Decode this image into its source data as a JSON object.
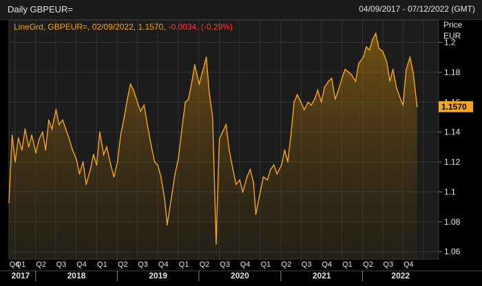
{
  "header": {
    "title": "Daily GBPEUR=",
    "date_range": "04/09/2017 - 07/12/2022 (GMT)"
  },
  "legend": {
    "series": "LineGrd, GBPEUR=, 02/09/2022, 1.1570,",
    "change": "-0.0034, (-0.29%)"
  },
  "axis": {
    "y_title_1": "Price",
    "y_title_2": "EUR",
    "last_value_label": "1.1570"
  },
  "colors": {
    "line": "#f5a623",
    "change_text": "#ff3b30",
    "last_value_box": "#f5a623",
    "background": "#000000",
    "plot_bg": "#1c1c1c"
  },
  "chart_data": {
    "type": "area",
    "title": "Daily GBPEUR=",
    "ylabel": "EUR",
    "ylim": [
      1.055,
      1.215
    ],
    "yticks": [
      1.06,
      1.08,
      1.1,
      1.12,
      1.14,
      1.16,
      1.18,
      1.2
    ],
    "ytick_labels": [
      "1.06",
      "1.08",
      "1.1",
      "1.12",
      "1.14",
      "1.16",
      "1.18",
      "1.2"
    ],
    "quarter_labels": [
      "Q4",
      "Q1",
      "Q2",
      "Q3",
      "Q4",
      "Q1",
      "Q2",
      "Q3",
      "Q4",
      "Q1",
      "Q2",
      "Q3",
      "Q4",
      "Q1",
      "Q2",
      "Q3",
      "Q4",
      "Q1",
      "Q2",
      "Q3",
      "Q4"
    ],
    "year_labels": [
      "2017",
      "2018",
      "2019",
      "2020",
      "2021",
      "2022"
    ],
    "grid": true,
    "x": [
      "2017-09-04",
      "2017-09-18",
      "2017-10-02",
      "2017-10-16",
      "2017-11-01",
      "2017-11-15",
      "2017-12-01",
      "2017-12-15",
      "2018-01-02",
      "2018-01-16",
      "2018-02-01",
      "2018-02-15",
      "2018-03-01",
      "2018-03-15",
      "2018-04-02",
      "2018-04-16",
      "2018-05-02",
      "2018-05-16",
      "2018-06-01",
      "2018-06-15",
      "2018-07-02",
      "2018-07-16",
      "2018-08-01",
      "2018-08-15",
      "2018-09-03",
      "2018-09-17",
      "2018-10-01",
      "2018-10-15",
      "2018-11-01",
      "2018-11-15",
      "2018-12-03",
      "2018-12-17",
      "2019-01-02",
      "2019-01-16",
      "2019-02-01",
      "2019-02-15",
      "2019-03-01",
      "2019-03-15",
      "2019-04-01",
      "2019-04-15",
      "2019-05-01",
      "2019-05-15",
      "2019-06-03",
      "2019-06-17",
      "2019-07-01",
      "2019-07-15",
      "2019-08-01",
      "2019-08-12",
      "2019-09-02",
      "2019-09-16",
      "2019-10-01",
      "2019-10-15",
      "2019-11-01",
      "2019-11-15",
      "2019-12-02",
      "2019-12-13",
      "2020-01-02",
      "2020-01-16",
      "2020-02-03",
      "2020-02-17",
      "2020-03-02",
      "2020-03-18",
      "2020-04-01",
      "2020-04-15",
      "2020-05-01",
      "2020-05-15",
      "2020-06-01",
      "2020-06-15",
      "2020-07-01",
      "2020-07-15",
      "2020-08-03",
      "2020-08-17",
      "2020-09-01",
      "2020-09-11",
      "2020-10-01",
      "2020-10-15",
      "2020-11-02",
      "2020-11-16",
      "2020-12-01",
      "2020-12-15",
      "2021-01-04",
      "2021-01-18",
      "2021-02-01",
      "2021-02-15",
      "2021-03-01",
      "2021-03-15",
      "2021-04-01",
      "2021-04-15",
      "2021-05-03",
      "2021-05-17",
      "2021-06-01",
      "2021-06-15",
      "2021-07-01",
      "2021-07-15",
      "2021-08-02",
      "2021-08-16",
      "2021-09-01",
      "2021-09-15",
      "2021-10-01",
      "2021-10-15",
      "2021-11-01",
      "2021-11-15",
      "2021-12-01",
      "2021-12-15",
      "2022-01-04",
      "2022-01-18",
      "2022-02-01",
      "2022-02-15",
      "2022-03-01",
      "2022-03-15",
      "2022-04-01",
      "2022-04-19",
      "2022-05-03",
      "2022-05-17",
      "2022-06-01",
      "2022-06-15",
      "2022-07-01",
      "2022-07-15",
      "2022-08-01",
      "2022-08-15",
      "2022-09-02"
    ],
    "series": [
      {
        "values": [
          1.093,
          1.138,
          1.12,
          1.136,
          1.128,
          1.142,
          1.13,
          1.138,
          1.126,
          1.135,
          1.14,
          1.128,
          1.148,
          1.142,
          1.155,
          1.145,
          1.148,
          1.142,
          1.135,
          1.128,
          1.122,
          1.112,
          1.12,
          1.105,
          1.115,
          1.125,
          1.118,
          1.14,
          1.125,
          1.13,
          1.118,
          1.11,
          1.12,
          1.138,
          1.15,
          1.162,
          1.172,
          1.168,
          1.16,
          1.154,
          1.158,
          1.145,
          1.13,
          1.12,
          1.118,
          1.11,
          1.095,
          1.078,
          1.098,
          1.112,
          1.122,
          1.14,
          1.16,
          1.162,
          1.175,
          1.185,
          1.172,
          1.18,
          1.19,
          1.165,
          1.15,
          1.065,
          1.135,
          1.14,
          1.145,
          1.128,
          1.115,
          1.105,
          1.108,
          1.1,
          1.11,
          1.115,
          1.106,
          1.085,
          1.1,
          1.11,
          1.108,
          1.115,
          1.118,
          1.112,
          1.118,
          1.128,
          1.12,
          1.138,
          1.16,
          1.165,
          1.16,
          1.155,
          1.16,
          1.158,
          1.162,
          1.168,
          1.16,
          1.17,
          1.174,
          1.176,
          1.162,
          1.168,
          1.176,
          1.182,
          1.18,
          1.178,
          1.174,
          1.186,
          1.19,
          1.197,
          1.195,
          1.202,
          1.206,
          1.196,
          1.194,
          1.187,
          1.174,
          1.182,
          1.17,
          1.164,
          1.158,
          1.182,
          1.19,
          1.18,
          1.157
        ]
      }
    ],
    "last_value": 1.157
  }
}
